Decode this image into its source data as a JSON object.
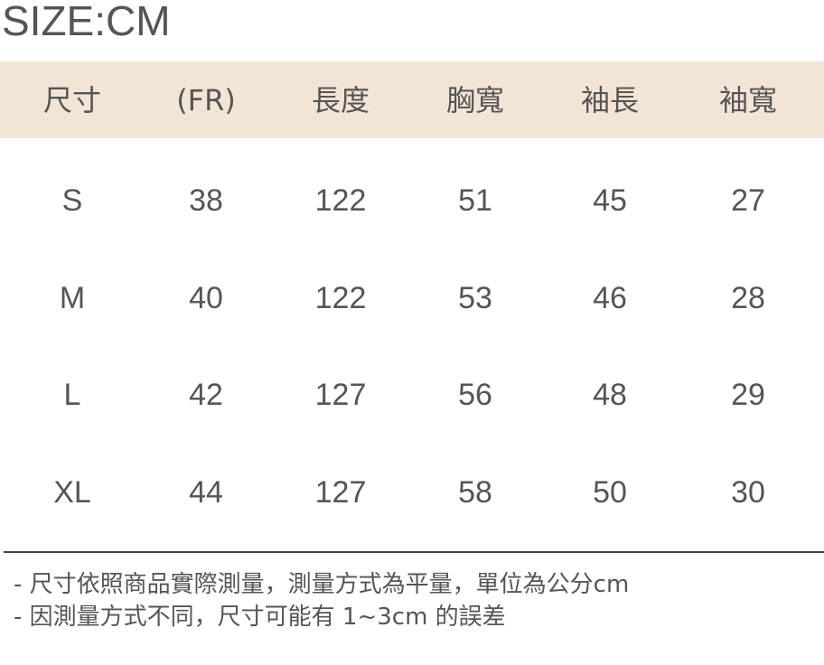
{
  "title": "SIZE:CM",
  "table": {
    "header_bg": "#f3e5d6",
    "headers": [
      "尺寸",
      "(FR)",
      "長度",
      "胸寬",
      "袖長",
      "袖寬"
    ],
    "rows": [
      [
        "S",
        "38",
        "122",
        "51",
        "45",
        "27"
      ],
      [
        "M",
        "40",
        "122",
        "53",
        "46",
        "28"
      ],
      [
        "L",
        "42",
        "127",
        "56",
        "48",
        "29"
      ],
      [
        "XL",
        "44",
        "127",
        "58",
        "50",
        "30"
      ]
    ]
  },
  "notes": [
    "- 尺寸依照商品實際測量，測量方式為平量，單位為公分cm",
    "- 因測量方式不同，尺寸可能有 1~3cm 的誤差"
  ]
}
